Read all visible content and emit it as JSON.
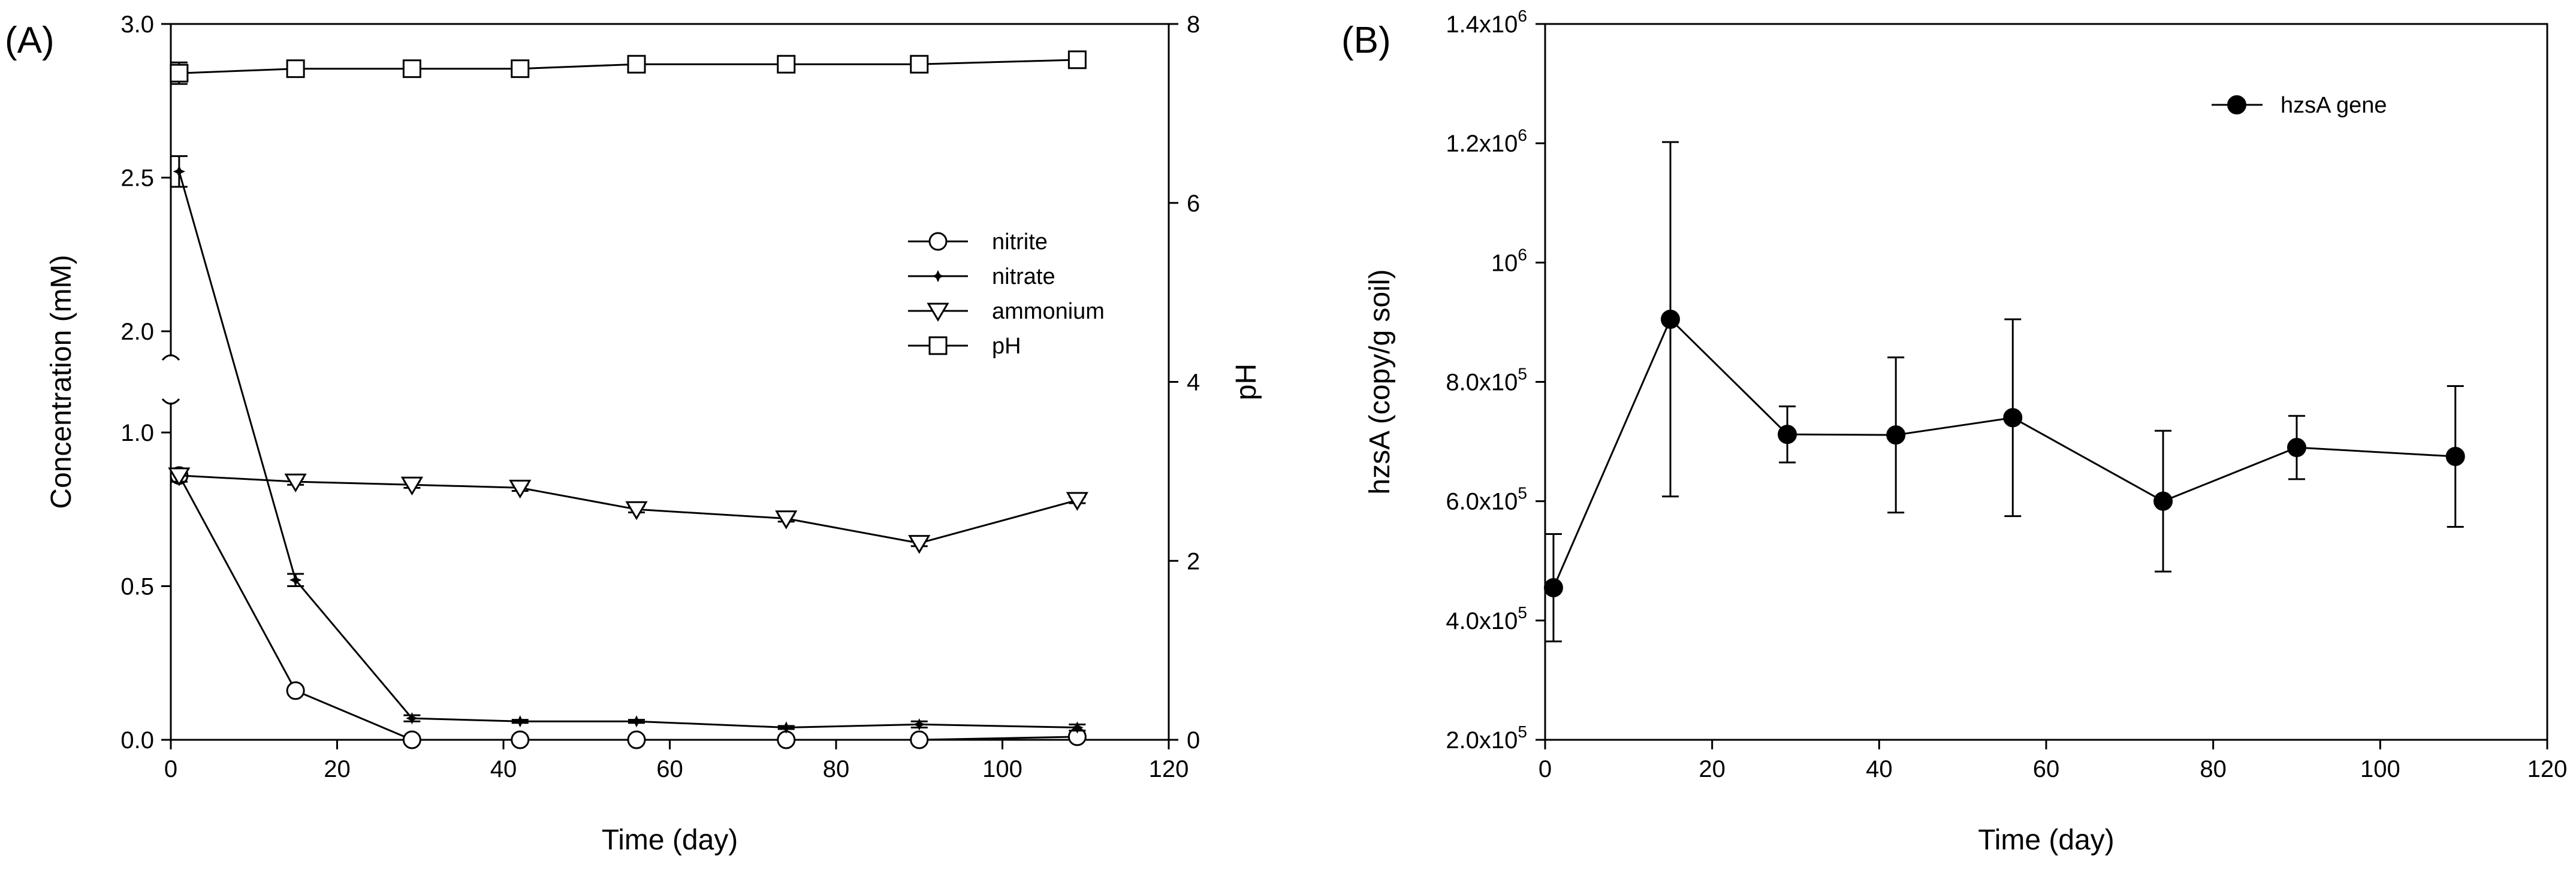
{
  "chart_data": [
    {
      "panel": "(A)",
      "type": "line",
      "xlabel": "Time (day)",
      "ylabel": "Concentration (mM)",
      "y2label": "pH",
      "xlim": [
        0,
        120
      ],
      "ylim_upper": [
        2.0,
        3.0
      ],
      "ylim_lower": [
        0.0,
        1.0
      ],
      "y2lim": [
        0,
        8
      ],
      "xticks": [
        "0",
        "20",
        "40",
        "60",
        "80",
        "100",
        "120"
      ],
      "yticks_upper": [
        "2.0",
        "2.5",
        "3.0"
      ],
      "yticks_lower": [
        "0.0",
        "0.5",
        "1.0"
      ],
      "y2ticks": [
        "0",
        "2",
        "4",
        "6",
        "8"
      ],
      "legend": [
        "nitrite",
        "nitrate",
        "ammonium",
        "pH"
      ],
      "legend_position": "right",
      "series": [
        {
          "name": "nitrite",
          "marker": "circle",
          "axis": "left",
          "x": [
            1,
            15,
            29,
            42,
            56,
            74,
            90,
            109
          ],
          "y": [
            0.86,
            0.16,
            0.0,
            0.0,
            0.0,
            0.0,
            0.0,
            0.01
          ],
          "err": [
            0.02,
            0.01,
            0,
            0,
            0,
            0,
            0,
            0
          ]
        },
        {
          "name": "nitrate",
          "marker": "star",
          "axis": "left",
          "x": [
            1,
            15,
            29,
            42,
            56,
            74,
            90,
            109
          ],
          "y": [
            2.52,
            0.52,
            0.07,
            0.06,
            0.06,
            0.04,
            0.05,
            0.04
          ],
          "err": [
            0.05,
            0.02,
            0.01,
            0.005,
            0.005,
            0.005,
            0.01,
            0.01
          ]
        },
        {
          "name": "ammonium",
          "marker": "triangle-down",
          "axis": "left",
          "x": [
            1,
            15,
            29,
            42,
            56,
            74,
            90,
            109
          ],
          "y": [
            0.86,
            0.84,
            0.83,
            0.82,
            0.75,
            0.72,
            0.64,
            0.78
          ],
          "err": [
            0.02,
            0.01,
            0.01,
            0.01,
            0.01,
            0.01,
            0.01,
            0.01
          ]
        },
        {
          "name": "pH",
          "marker": "square",
          "axis": "right",
          "x": [
            1,
            15,
            29,
            42,
            56,
            74,
            90,
            109
          ],
          "y": [
            7.45,
            7.5,
            7.5,
            7.5,
            7.55,
            7.55,
            7.55,
            7.6
          ],
          "err": [
            0.12,
            0.02,
            0.02,
            0.02,
            0.02,
            0.02,
            0.02,
            0.02
          ]
        }
      ]
    },
    {
      "panel": "(B)",
      "type": "line",
      "xlabel": "Time (day)",
      "ylabel": "hzsA (copy/g soil)",
      "xlim": [
        0,
        120
      ],
      "ylim": [
        200000,
        1400000
      ],
      "xticks": [
        "0",
        "20",
        "40",
        "60",
        "80",
        "100",
        "120"
      ],
      "yticks": [
        {
          "value": 200000,
          "mant": "2.0x10",
          "exp": "5"
        },
        {
          "value": 400000,
          "mant": "4.0x10",
          "exp": "5"
        },
        {
          "value": 600000,
          "mant": "6.0x10",
          "exp": "5"
        },
        {
          "value": 800000,
          "mant": "8.0x10",
          "exp": "5"
        },
        {
          "value": 1000000,
          "mant": "10",
          "exp": "6"
        },
        {
          "value": 1200000,
          "mant": "1.2x10",
          "exp": "6"
        },
        {
          "value": 1400000,
          "mant": "1.4x10",
          "exp": "6"
        }
      ],
      "legend": [
        "hzsA gene"
      ],
      "legend_position": "top-right",
      "series": [
        {
          "name": "hzsA gene",
          "marker": "filled-circle",
          "x": [
            1,
            15,
            29,
            42,
            56,
            74,
            90,
            109
          ],
          "y": [
            455000,
            905000,
            712000,
            711000,
            740000,
            600000,
            690000,
            675000
          ],
          "err": [
            90000,
            297000,
            47000,
            130000,
            165000,
            118000,
            53000,
            118000
          ]
        }
      ]
    }
  ]
}
